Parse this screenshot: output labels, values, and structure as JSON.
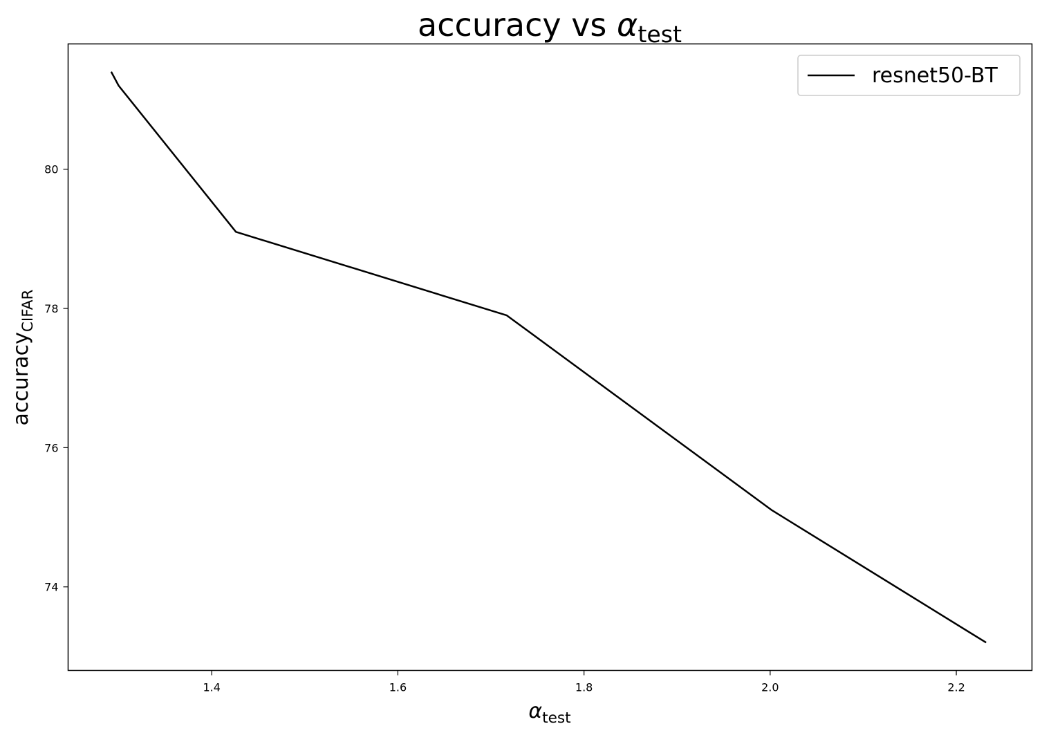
{
  "chart_data": {
    "type": "line",
    "title": {
      "main": "accuracy vs ",
      "symbol": "α",
      "subscript": "test"
    },
    "xlabel": {
      "symbol": "α",
      "subscript": "test"
    },
    "ylabel": {
      "main": "accuracy",
      "subscript": "CIFAR"
    },
    "xlim": [
      1.2457,
      2.2813
    ],
    "ylim": [
      72.8,
      81.8
    ],
    "xticks": [
      1.4,
      1.6,
      1.8,
      2.0,
      2.2
    ],
    "xtick_labels": [
      "1.4",
      "1.6",
      "1.8",
      "2.0",
      "2.2"
    ],
    "yticks": [
      74,
      76,
      78,
      80
    ],
    "ytick_labels": [
      "74",
      "76",
      "78",
      "80"
    ],
    "grid": false,
    "legend_position": "top-right",
    "series": [
      {
        "name": "resnet50-BT",
        "color": "#000000",
        "x": [
          1.292,
          1.3,
          1.426,
          1.717,
          2.002,
          2.232
        ],
        "y": [
          81.4,
          81.2,
          79.1,
          77.9,
          75.1,
          73.2
        ]
      }
    ]
  }
}
